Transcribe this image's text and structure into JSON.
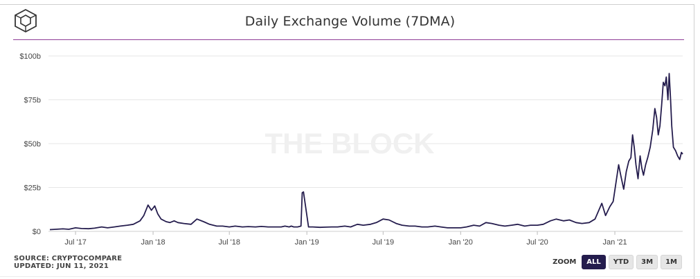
{
  "header": {
    "title": "Daily Exchange Volume (7DMA)",
    "logo_icon": "cube-logo-icon"
  },
  "watermark": "THE BLOCK",
  "footer": {
    "source": "SOURCE: CRYPTOCOMPARE",
    "updated": "UPDATED: JUN 11, 2021"
  },
  "zoom": {
    "label": "ZOOM",
    "buttons": [
      "ALL",
      "YTD",
      "3M",
      "1M"
    ],
    "active": "ALL"
  },
  "colors": {
    "line": "#241c4d",
    "title_rule": "#8e3a96",
    "grid": "#e6e6e6",
    "active_button": "#241c4d"
  },
  "chart_data": {
    "type": "line",
    "title": "Daily Exchange Volume (7DMA)",
    "xlabel": "",
    "ylabel": "",
    "y_unit": "billion USD",
    "ylim": [
      0,
      100
    ],
    "yticks": [
      0,
      25,
      50,
      75,
      100
    ],
    "ytick_labels": [
      "$0",
      "$25b",
      "$50b",
      "$75b",
      "$100b"
    ],
    "xlim": [
      "2017-05-01",
      "2021-06-11"
    ],
    "xticks": [
      "2017-07-01",
      "2018-01-01",
      "2018-07-01",
      "2019-01-01",
      "2019-07-01",
      "2020-01-01",
      "2020-07-01",
      "2021-01-01"
    ],
    "xtick_labels": [
      "Jul '17",
      "Jan '18",
      "Jul '18",
      "Jan '19",
      "Jul '19",
      "Jan '20",
      "Jul '20",
      "Jan '21"
    ],
    "grid": "horizontal",
    "legend": "none",
    "series": [
      {
        "x": [
          "2017-05-01",
          "2017-05-15",
          "2017-06-01",
          "2017-06-15",
          "2017-07-01",
          "2017-07-15",
          "2017-08-01",
          "2017-08-15",
          "2017-09-01",
          "2017-09-15",
          "2017-10-01",
          "2017-10-15",
          "2017-11-01",
          "2017-11-15",
          "2017-12-01",
          "2017-12-10",
          "2017-12-20",
          "2017-12-28",
          "2018-01-05",
          "2018-01-12",
          "2018-01-20",
          "2018-02-01",
          "2018-02-10",
          "2018-02-20",
          "2018-03-01",
          "2018-03-15",
          "2018-04-01",
          "2018-04-15",
          "2018-05-01",
          "2018-05-15",
          "2018-06-01",
          "2018-06-15",
          "2018-07-01",
          "2018-07-15",
          "2018-08-01",
          "2018-08-15",
          "2018-09-01",
          "2018-09-15",
          "2018-10-01",
          "2018-10-15",
          "2018-11-01",
          "2018-11-10",
          "2018-11-20",
          "2018-11-25",
          "2018-12-01",
          "2018-12-10",
          "2018-12-18",
          "2018-12-21",
          "2018-12-24",
          "2019-01-05",
          "2019-01-15",
          "2019-02-01",
          "2019-02-15",
          "2019-03-01",
          "2019-03-15",
          "2019-04-01",
          "2019-04-15",
          "2019-05-01",
          "2019-05-15",
          "2019-06-01",
          "2019-06-15",
          "2019-07-01",
          "2019-07-15",
          "2019-08-01",
          "2019-08-15",
          "2019-09-01",
          "2019-09-15",
          "2019-10-01",
          "2019-10-15",
          "2019-11-01",
          "2019-11-15",
          "2019-12-01",
          "2019-12-15",
          "2020-01-01",
          "2020-01-15",
          "2020-02-01",
          "2020-02-15",
          "2020-03-01",
          "2020-03-15",
          "2020-04-01",
          "2020-04-15",
          "2020-05-01",
          "2020-05-15",
          "2020-06-01",
          "2020-06-15",
          "2020-07-01",
          "2020-07-15",
          "2020-08-01",
          "2020-08-15",
          "2020-09-01",
          "2020-09-15",
          "2020-10-01",
          "2020-10-15",
          "2020-11-01",
          "2020-11-15",
          "2020-12-01",
          "2020-12-10",
          "2020-12-20",
          "2020-12-28",
          "2021-01-05",
          "2021-01-10",
          "2021-01-15",
          "2021-01-22",
          "2021-01-28",
          "2021-02-03",
          "2021-02-08",
          "2021-02-12",
          "2021-02-16",
          "2021-02-20",
          "2021-02-25",
          "2021-03-02",
          "2021-03-06",
          "2021-03-10",
          "2021-03-15",
          "2021-03-20",
          "2021-03-26",
          "2021-04-01",
          "2021-04-06",
          "2021-04-10",
          "2021-04-14",
          "2021-04-18",
          "2021-04-22",
          "2021-04-26",
          "2021-04-30",
          "2021-05-03",
          "2021-05-07",
          "2021-05-10",
          "2021-05-13",
          "2021-05-16",
          "2021-05-20",
          "2021-05-25",
          "2021-05-30",
          "2021-06-04",
          "2021-06-08",
          "2021-06-11"
        ],
        "values": [
          1.0,
          1.2,
          1.4,
          1.2,
          2.0,
          1.6,
          1.5,
          1.8,
          2.5,
          2.0,
          2.5,
          3.0,
          3.5,
          4.0,
          6.0,
          9.0,
          15.0,
          12.0,
          14.5,
          10.0,
          7.0,
          5.5,
          5.0,
          6.0,
          5.0,
          4.5,
          4.0,
          7.0,
          5.5,
          4.0,
          3.0,
          3.0,
          2.5,
          3.0,
          2.5,
          2.7,
          2.5,
          2.8,
          2.5,
          2.5,
          2.5,
          3.0,
          2.5,
          3.0,
          2.5,
          2.5,
          3.0,
          22.0,
          22.5,
          2.5,
          2.5,
          2.3,
          2.4,
          2.5,
          2.5,
          3.0,
          2.5,
          4.0,
          3.5,
          4.0,
          5.0,
          7.0,
          6.5,
          4.5,
          3.5,
          3.0,
          3.0,
          2.5,
          2.5,
          3.0,
          2.5,
          2.0,
          2.0,
          2.0,
          2.5,
          3.5,
          3.0,
          5.0,
          4.5,
          3.5,
          3.0,
          3.5,
          4.0,
          3.0,
          3.5,
          3.5,
          4.0,
          6.0,
          7.0,
          6.0,
          6.5,
          5.0,
          4.5,
          5.0,
          7.0,
          16.0,
          9.0,
          14.0,
          17.0,
          30.0,
          38.0,
          32.0,
          24.0,
          34.0,
          40.0,
          42.0,
          55.0,
          48.0,
          38.0,
          30.0,
          43.0,
          36.0,
          32.0,
          38.0,
          42.0,
          48.0,
          58.0,
          70.0,
          65.0,
          55.0,
          60.0,
          72.0,
          85.0,
          83.0,
          88.0,
          75.0,
          90.0,
          76.0,
          60.0,
          48.0,
          46.0,
          43.0,
          41.0,
          45.0,
          44.0
        ]
      }
    ]
  }
}
